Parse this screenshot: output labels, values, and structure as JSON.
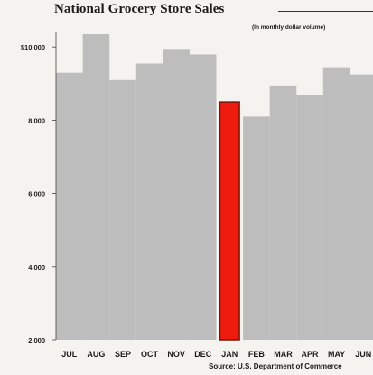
{
  "chart_data": {
    "type": "bar",
    "title": "National Grocery Store Sales",
    "subtitle": "(In monthly dollar volume)",
    "source": "Source: U.S. Department of Commerce",
    "categories": [
      "JUL",
      "AUG",
      "SEP",
      "OCT",
      "NOV",
      "DEC",
      "JAN",
      "FEB",
      "MAR",
      "APR",
      "MAY",
      "JUN"
    ],
    "values": [
      9300,
      10350,
      9100,
      9550,
      9950,
      9800,
      8500,
      8100,
      8950,
      8700,
      9450,
      9250
    ],
    "highlight_index": 6,
    "ylim": [
      2000,
      10400
    ],
    "yticks": [
      2000,
      4000,
      6000,
      8000,
      10000
    ],
    "ytick_labels": [
      "2.000",
      "4.000",
      "6.000",
      "8.000",
      "$10.000"
    ],
    "xlabel": "",
    "ylabel": "",
    "grid": false,
    "colors": {
      "bar": "#bdbdbd",
      "highlight": "#ee1c0f",
      "highlight_edge": "#7a1408"
    }
  }
}
